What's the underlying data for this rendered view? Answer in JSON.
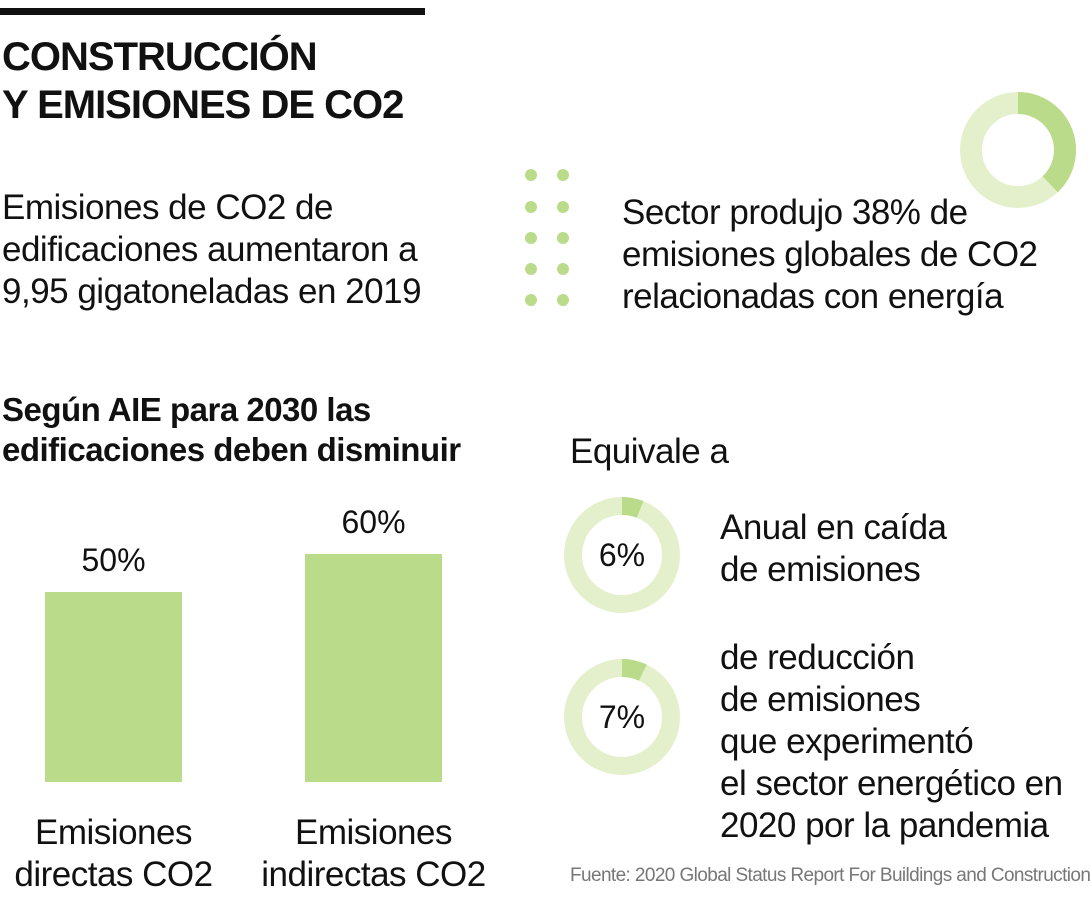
{
  "title": [
    "CONSTRUCCIÓN",
    "Y EMISIONES DE CO2"
  ],
  "fact_left": [
    "Emisiones de CO2 de",
    "edificaciones aumentaron a",
    "9,95 gigatoneladas en 2019"
  ],
  "fact_right": [
    "Sector produjo 38% de",
    "emisiones globales de CO2",
    "relacionadas con energía"
  ],
  "equivale": "Equivale a",
  "source": "Fuente: 2020 Global Status Report For Buildings and Construction",
  "chart_data": [
    {
      "type": "donut",
      "values": [
        38
      ],
      "color": "#b9db8a",
      "track_color": "#e4f0cc"
    },
    {
      "type": "bar",
      "title": [
        "Según AIE para 2030 las",
        "edificaciones deben disminuir"
      ],
      "categories": [
        "Emisiones directas CO2",
        "Emisiones indirectas CO2"
      ],
      "values": [
        50,
        60
      ],
      "value_labels": [
        "50%",
        "60%"
      ],
      "color": "#b9db8a"
    },
    {
      "type": "donut",
      "values": [
        6
      ],
      "value_labels": [
        "6%"
      ],
      "color": "#b9db8a",
      "track_color": "#e4f0cc",
      "caption": [
        "Anual en caída",
        "de emisiones"
      ]
    },
    {
      "type": "donut",
      "values": [
        7
      ],
      "value_labels": [
        "7%"
      ],
      "color": "#b9db8a",
      "track_color": "#e4f0cc",
      "caption": [
        "de reducción",
        "de emisiones",
        "que experimentó",
        "el sector energético en",
        "2020 por la pandemia"
      ]
    }
  ]
}
